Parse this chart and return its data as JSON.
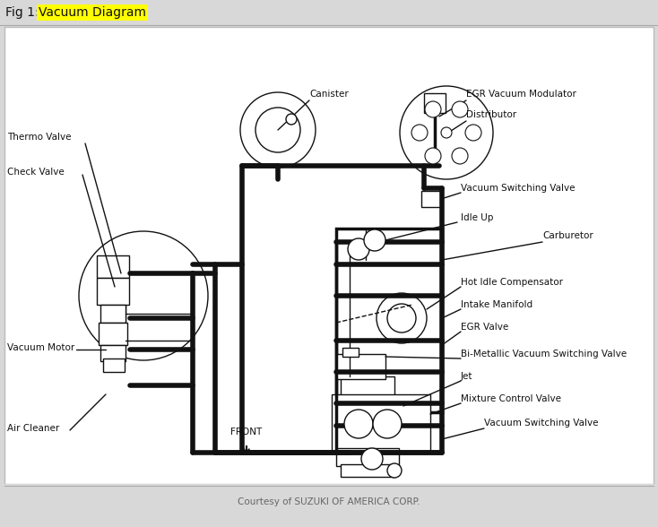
{
  "title_prefix": "Fig 1: ",
  "title_highlight": "Vacuum Diagram",
  "outer_bg": "#d8d8d8",
  "inner_bg": "#f5f5f5",
  "border_color": "#aaaaaa",
  "text_color": "#111111",
  "line_color": "#111111",
  "highlight_color": "#ffff00",
  "footer_text": "Courtesy of SUZUKI OF AMERICA CORP.",
  "label_fontsize": 7.5,
  "title_fontsize": 10
}
